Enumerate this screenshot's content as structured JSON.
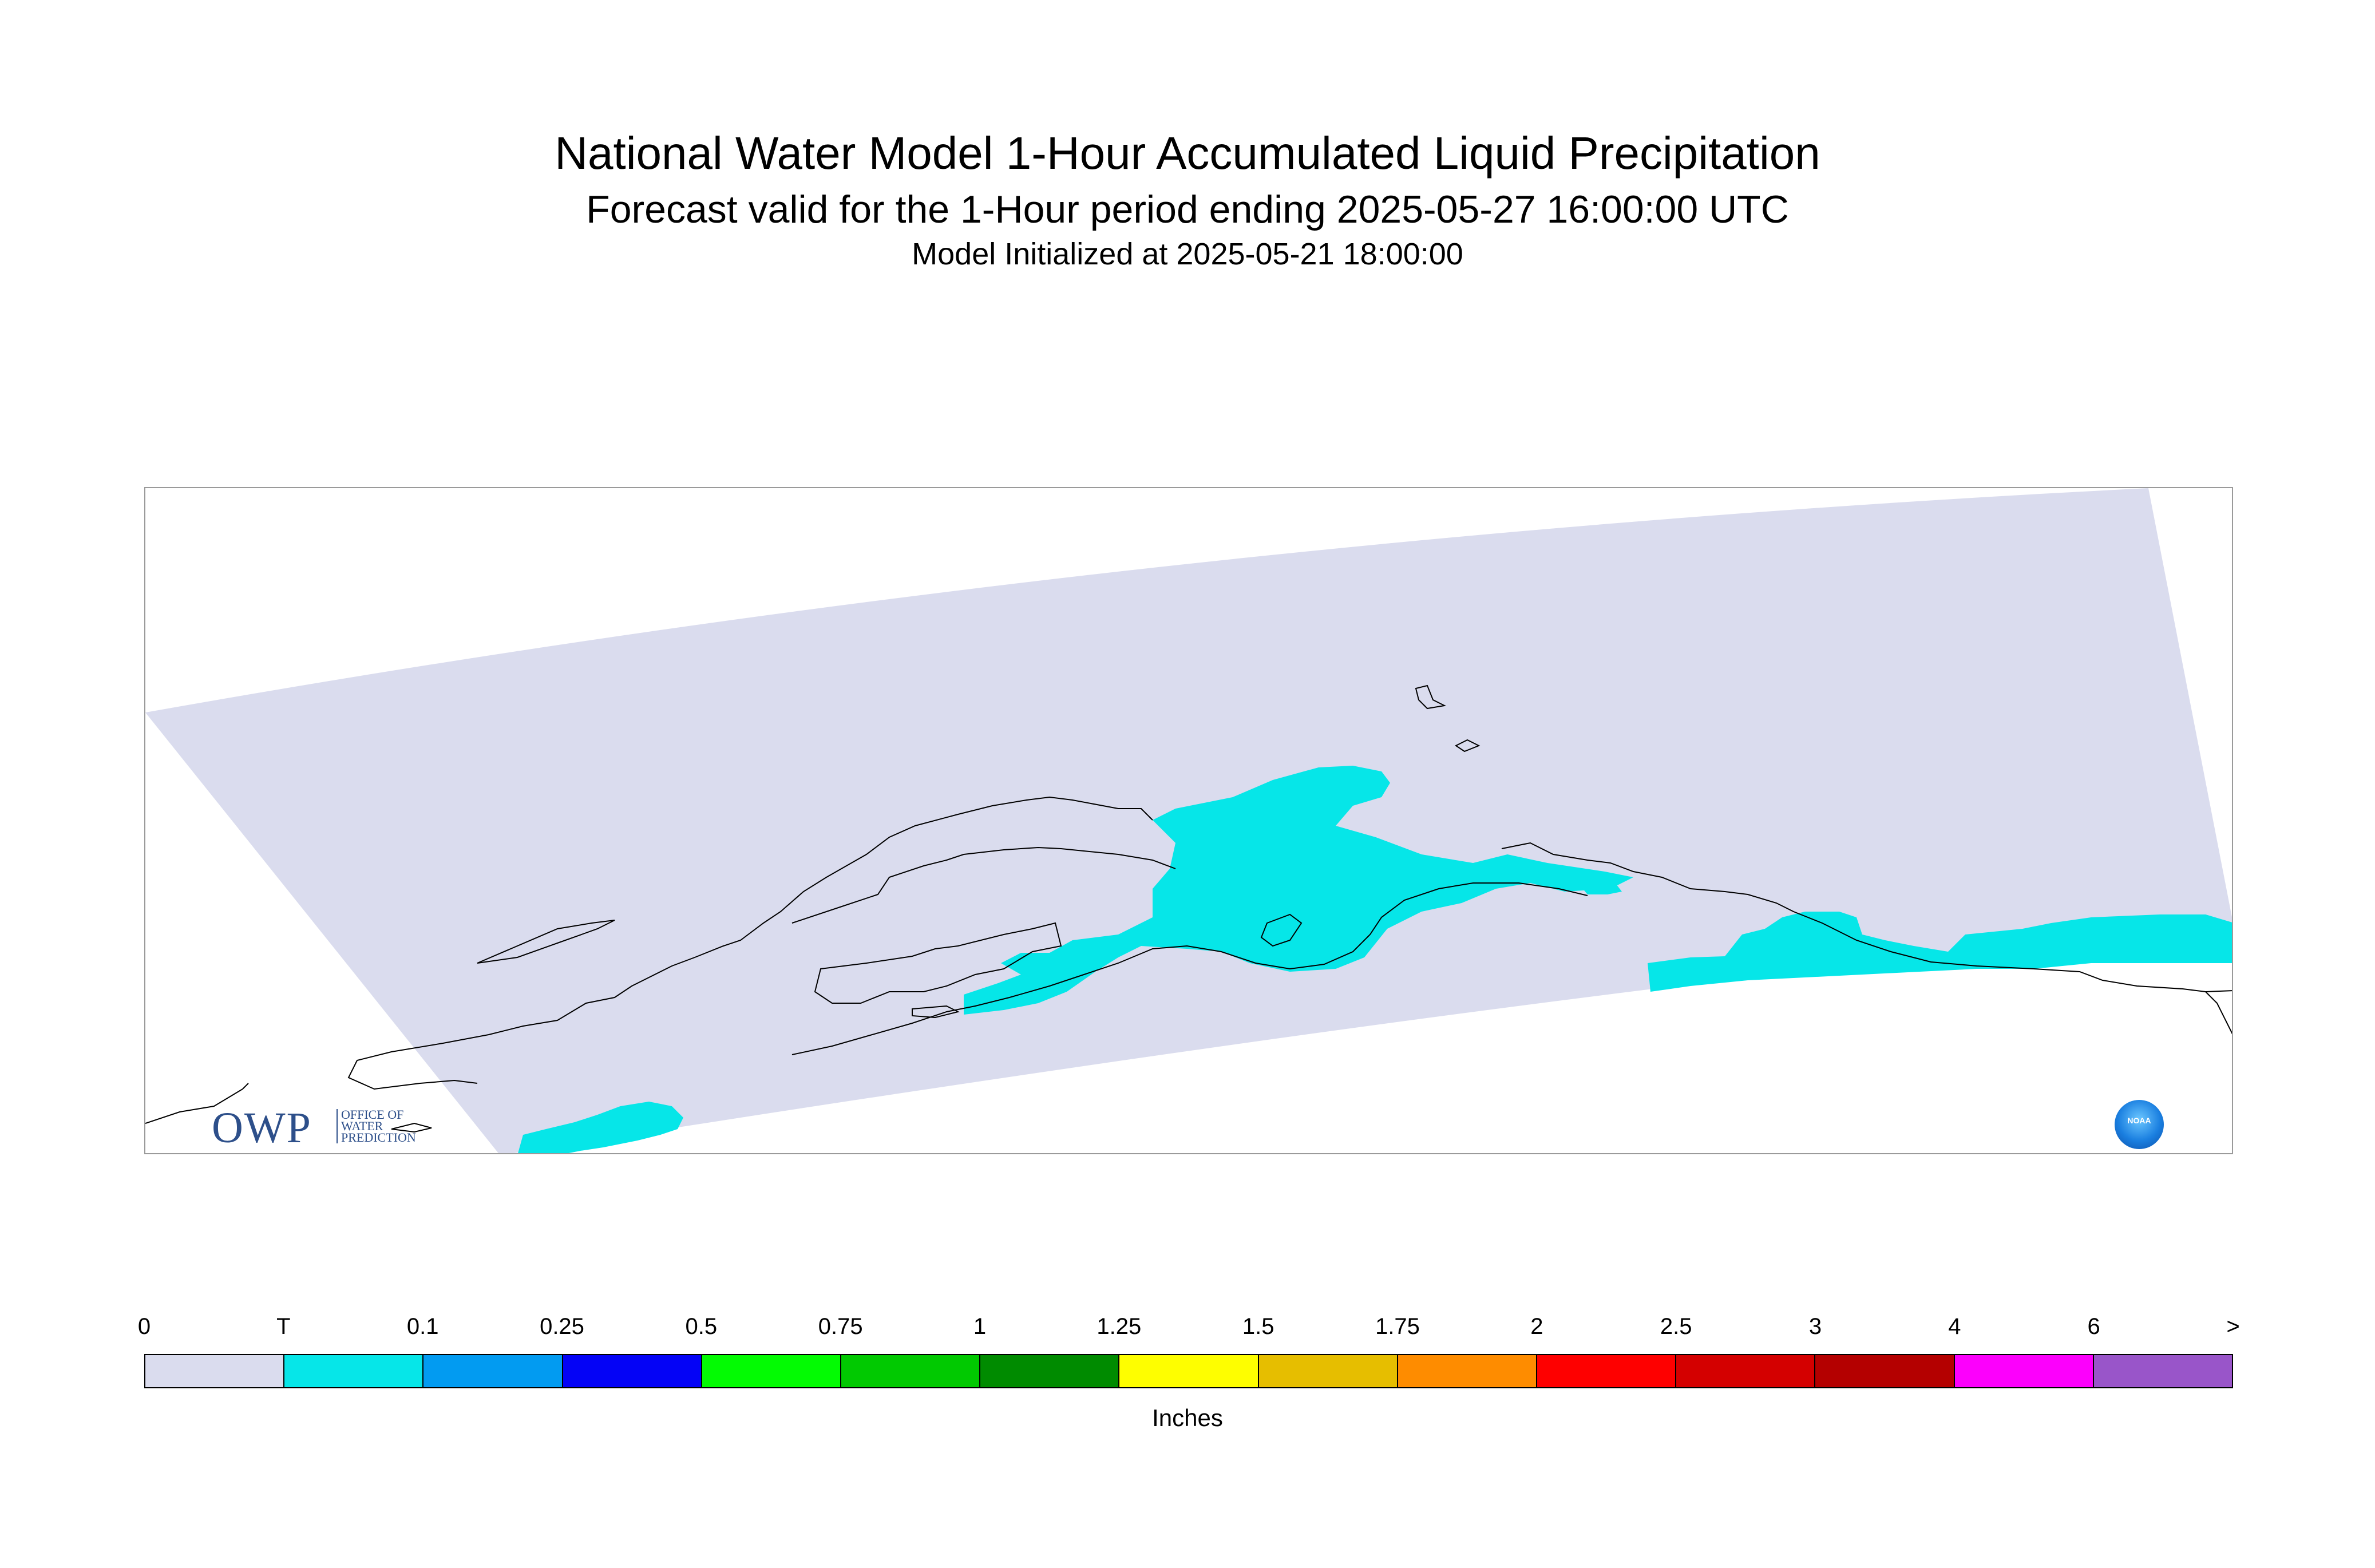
{
  "title": "National Water Model 1-Hour Accumulated Liquid Precipitation",
  "subtitle": "Forecast valid for the 1-Hour period ending 2025-05-27 16:00:00 UTC",
  "init_line": "Model Initialized at 2025-05-21 18:00:00",
  "logos": {
    "owp_big": "OWP",
    "owp_small": [
      "OFFICE OF",
      "WATER",
      "PREDICTION"
    ],
    "noaa": "NOAA"
  },
  "map": {
    "domain_fill_color": "#dadcee",
    "precip_fill_color": "#06e6e8",
    "coast_color": "#000000"
  },
  "legend": {
    "labels": [
      "0",
      "T",
      "0.1",
      "0.25",
      "0.5",
      "0.75",
      "1",
      "1.25",
      "1.5",
      "1.75",
      "2",
      "2.5",
      "3",
      "4",
      "6",
      ">"
    ],
    "colors": [
      "#dadcee",
      "#06e6e8",
      "#029bf1",
      "#0403f6",
      "#03fb03",
      "#01c901",
      "#008b00",
      "#fefe00",
      "#e6be00",
      "#fe8c00",
      "#fe0000",
      "#d40000",
      "#b40000",
      "#fc00fc",
      "#9955c9"
    ],
    "units": "Inches"
  }
}
